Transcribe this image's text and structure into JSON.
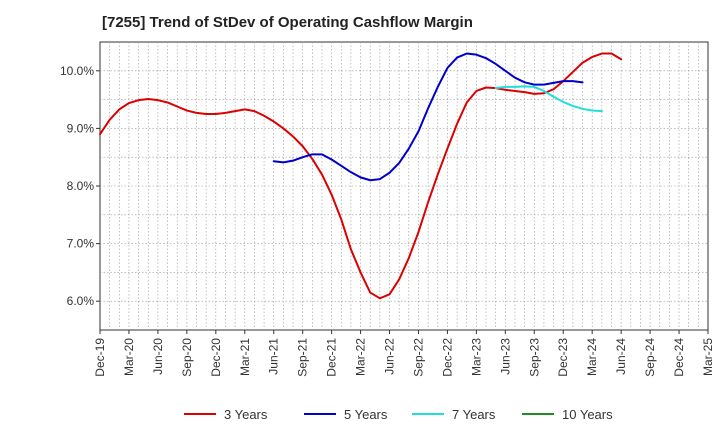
{
  "chart_data": {
    "type": "line",
    "title": "[7255]  Trend of StDev of Operating Cashflow Margin",
    "xlabel": "",
    "ylabel": "",
    "x_tick_labels": [
      "Dec-19",
      "Mar-20",
      "Jun-20",
      "Sep-20",
      "Dec-20",
      "Mar-21",
      "Jun-21",
      "Sep-21",
      "Dec-21",
      "Mar-22",
      "Jun-22",
      "Sep-22",
      "Dec-22",
      "Mar-23",
      "Jun-23",
      "Sep-23",
      "Dec-23",
      "Mar-24",
      "Jun-24",
      "Sep-24",
      "Dec-24",
      "Mar-25"
    ],
    "y_tick_labels": [
      "6.0%",
      "7.0%",
      "8.0%",
      "9.0%",
      "10.0%"
    ],
    "y_ticks": [
      6.0,
      7.0,
      8.0,
      9.0,
      10.0
    ],
    "ylim": [
      5.5,
      10.5
    ],
    "x_range_months": [
      0,
      63
    ],
    "grid": true,
    "legend_position": "bottom",
    "series": [
      {
        "name": "3 Years",
        "color": "#dd0000",
        "points": [
          [
            0,
            8.9
          ],
          [
            1,
            9.15
          ],
          [
            2,
            9.33
          ],
          [
            3,
            9.44
          ],
          [
            4,
            9.49
          ],
          [
            5,
            9.51
          ],
          [
            6,
            9.49
          ],
          [
            7,
            9.45
          ],
          [
            8,
            9.38
          ],
          [
            9,
            9.31
          ],
          [
            10,
            9.27
          ],
          [
            11,
            9.25
          ],
          [
            12,
            9.25
          ],
          [
            13,
            9.27
          ],
          [
            14,
            9.3
          ],
          [
            15,
            9.33
          ],
          [
            16,
            9.3
          ],
          [
            17,
            9.22
          ],
          [
            18,
            9.12
          ],
          [
            19,
            9.0
          ],
          [
            20,
            8.86
          ],
          [
            21,
            8.69
          ],
          [
            22,
            8.47
          ],
          [
            23,
            8.2
          ],
          [
            24,
            7.85
          ],
          [
            25,
            7.42
          ],
          [
            26,
            6.9
          ],
          [
            27,
            6.5
          ],
          [
            28,
            6.15
          ],
          [
            29,
            6.05
          ],
          [
            30,
            6.12
          ],
          [
            31,
            6.38
          ],
          [
            32,
            6.75
          ],
          [
            33,
            7.2
          ],
          [
            34,
            7.72
          ],
          [
            35,
            8.2
          ],
          [
            36,
            8.65
          ],
          [
            37,
            9.08
          ],
          [
            38,
            9.45
          ],
          [
            39,
            9.65
          ],
          [
            40,
            9.71
          ],
          [
            41,
            9.7
          ],
          [
            42,
            9.67
          ],
          [
            43,
            9.65
          ],
          [
            44,
            9.63
          ],
          [
            45,
            9.6
          ],
          [
            46,
            9.61
          ],
          [
            47,
            9.68
          ],
          [
            48,
            9.82
          ],
          [
            49,
            9.98
          ],
          [
            50,
            10.14
          ],
          [
            51,
            10.24
          ],
          [
            52,
            10.3
          ],
          [
            53,
            10.3
          ],
          [
            54,
            10.2
          ]
        ]
      },
      {
        "name": "5 Years",
        "color": "#0000cc",
        "points": [
          [
            18,
            8.43
          ],
          [
            19,
            8.41
          ],
          [
            20,
            8.44
          ],
          [
            21,
            8.5
          ],
          [
            22,
            8.55
          ],
          [
            23,
            8.55
          ],
          [
            24,
            8.46
          ],
          [
            25,
            8.35
          ],
          [
            26,
            8.24
          ],
          [
            27,
            8.15
          ],
          [
            28,
            8.1
          ],
          [
            29,
            8.12
          ],
          [
            30,
            8.23
          ],
          [
            31,
            8.4
          ],
          [
            32,
            8.65
          ],
          [
            33,
            8.95
          ],
          [
            34,
            9.35
          ],
          [
            35,
            9.72
          ],
          [
            36,
            10.05
          ],
          [
            37,
            10.23
          ],
          [
            38,
            10.3
          ],
          [
            39,
            10.28
          ],
          [
            40,
            10.22
          ],
          [
            41,
            10.12
          ],
          [
            42,
            10.0
          ],
          [
            43,
            9.88
          ],
          [
            44,
            9.8
          ],
          [
            45,
            9.76
          ],
          [
            46,
            9.76
          ],
          [
            47,
            9.79
          ],
          [
            48,
            9.82
          ],
          [
            49,
            9.82
          ],
          [
            50,
            9.8
          ]
        ]
      },
      {
        "name": "7 Years",
        "color": "#22dddd",
        "points": [
          [
            41,
            9.7
          ],
          [
            42,
            9.72
          ],
          [
            43,
            9.72
          ],
          [
            44,
            9.73
          ],
          [
            45,
            9.72
          ],
          [
            46,
            9.65
          ],
          [
            47,
            9.55
          ],
          [
            48,
            9.46
          ],
          [
            49,
            9.39
          ],
          [
            50,
            9.34
          ],
          [
            51,
            9.31
          ],
          [
            52,
            9.3
          ]
        ]
      },
      {
        "name": "10 Years",
        "color": "#228b22",
        "points": []
      }
    ]
  }
}
